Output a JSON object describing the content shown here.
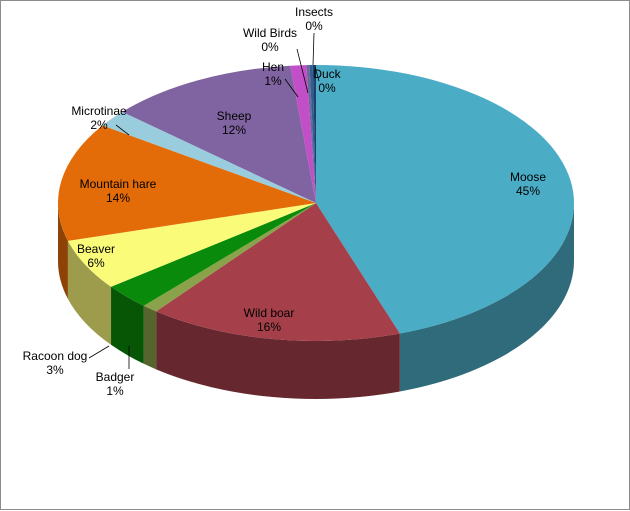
{
  "chart_data": {
    "type": "pie",
    "title": "",
    "three_d": true,
    "legend": "none",
    "slices": [
      {
        "label": "Moose",
        "value": 45,
        "value_label": "45%",
        "color": "#4bacc6"
      },
      {
        "label": "Wild boar",
        "value": 16,
        "value_label": "16%",
        "color": "#a5404a"
      },
      {
        "label": "Badger",
        "value": 1,
        "value_label": "1%",
        "color": "#8aa24a"
      },
      {
        "label": "Racoon dog",
        "value": 3,
        "value_label": "3%",
        "color": "#0a8a0a"
      },
      {
        "label": "Beaver",
        "value": 6,
        "value_label": "6%",
        "color": "#fbfb7a"
      },
      {
        "label": "Mountain hare",
        "value": 14,
        "value_label": "14%",
        "color": "#e36c09"
      },
      {
        "label": "Microtinae",
        "value": 2,
        "value_label": "2%",
        "color": "#99ccdc"
      },
      {
        "label": "Sheep",
        "value": 12,
        "value_label": "12%",
        "color": "#8064a2"
      },
      {
        "label": "Hen",
        "value": 1,
        "value_label": "1%",
        "color": "#c24ec8"
      },
      {
        "label": "Wild Birds",
        "value": 0.2,
        "value_label": "0%",
        "color": "#6a6a9a"
      },
      {
        "label": "Insects",
        "value": 0.2,
        "value_label": "0%",
        "color": "#2f5f8f"
      },
      {
        "label": "Duck",
        "value": 0.2,
        "value_label": "0%",
        "color": "#1f3f6f"
      }
    ]
  }
}
